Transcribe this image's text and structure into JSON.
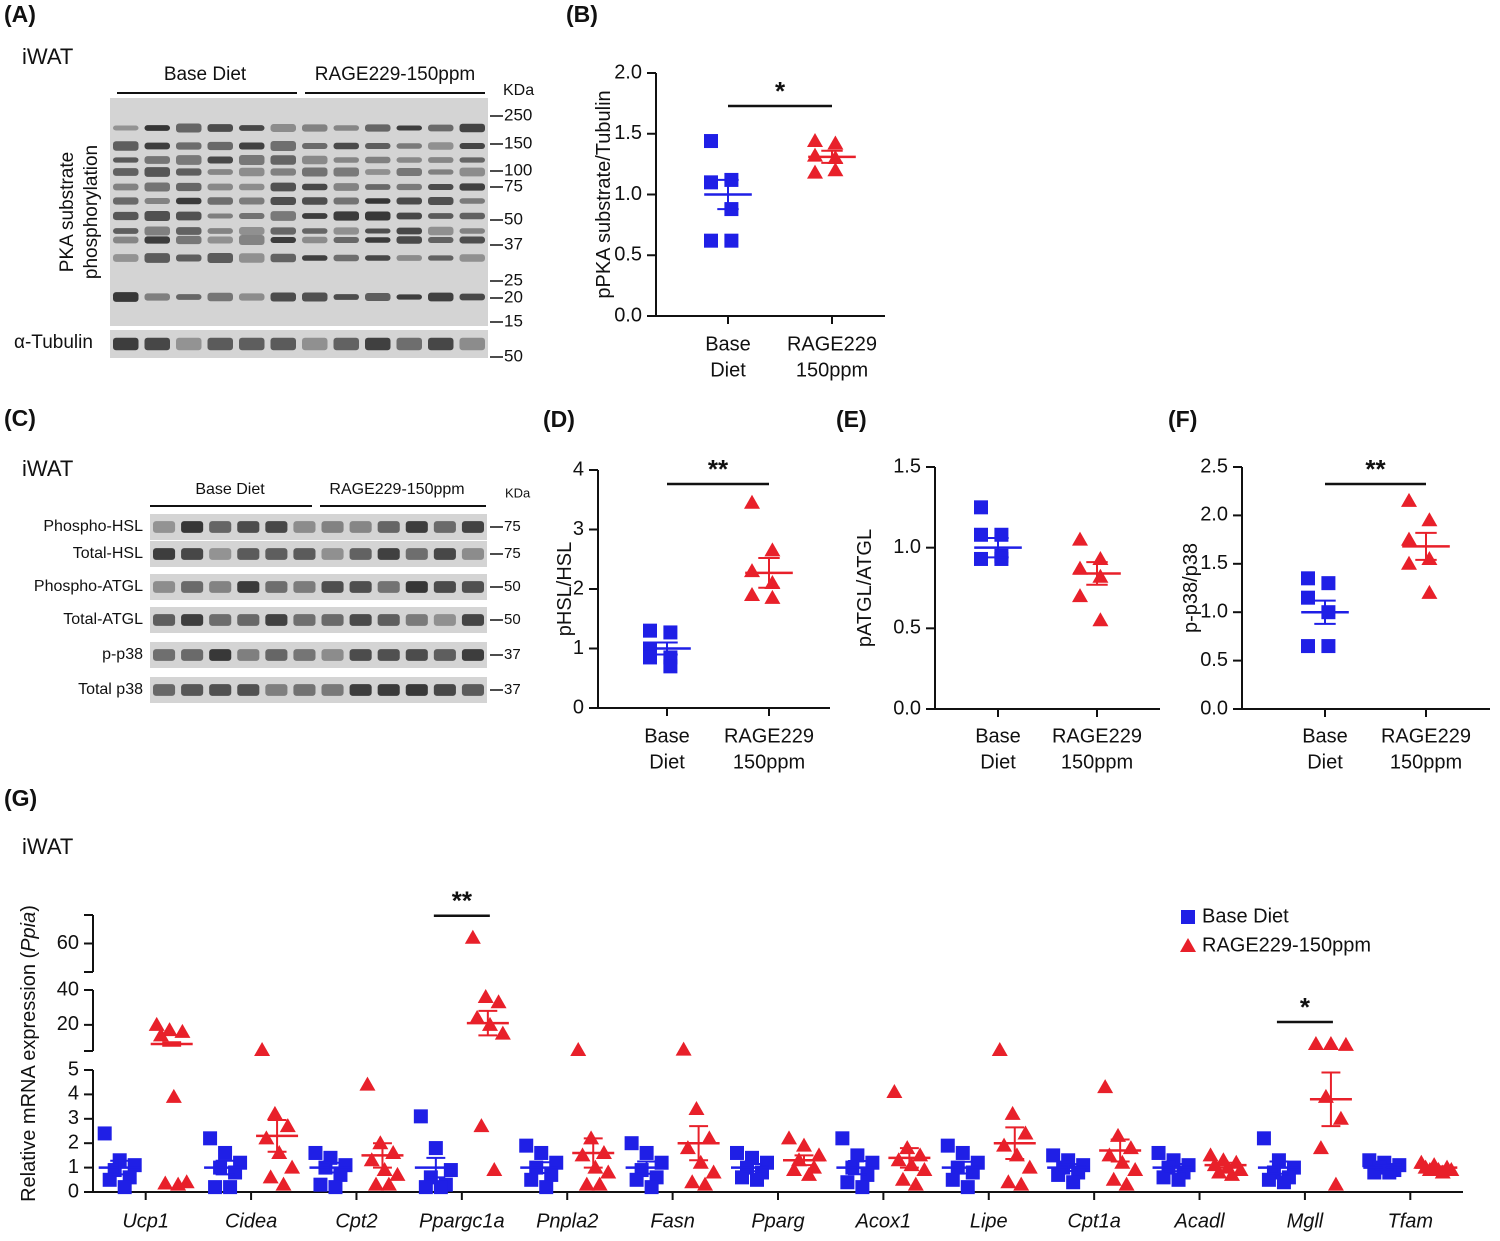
{
  "blots": [
    {
      "panel": "(A)",
      "tissue": "iWAT",
      "groups": [
        "Base Diet",
        "RAGE229-150ppm"
      ],
      "unit": "KDa",
      "rows": [
        {
          "label": [
            "PKA substrate",
            "phosphorylation"
          ],
          "markers": [
            250,
            150,
            100,
            75,
            50,
            37,
            25,
            20,
            15
          ]
        },
        {
          "label": [
            "α-Tubulin"
          ],
          "markers": [
            50
          ]
        }
      ]
    },
    {
      "panel": "(C)",
      "tissue": "iWAT",
      "groups": [
        "Base Diet",
        "RAGE229-150ppm"
      ],
      "unit": "KDa",
      "rows": [
        {
          "label": [
            "Phospho-HSL"
          ],
          "markers": [
            75
          ]
        },
        {
          "label": [
            "Total-HSL"
          ],
          "markers": [
            75
          ]
        },
        {
          "label": [
            "Phospho-ATGL"
          ],
          "markers": [
            50
          ]
        },
        {
          "label": [
            "Total-ATGL"
          ],
          "markers": [
            50
          ]
        },
        {
          "label": [
            "p-p38"
          ],
          "markers": [
            37
          ]
        },
        {
          "label": [
            "Total p38"
          ],
          "markers": [
            37
          ]
        }
      ]
    }
  ],
  "chart_data": [
    {
      "type": "strip",
      "panel": "(B)",
      "ylabel": [
        "pPKA substrate/Tubulin"
      ],
      "categories": [
        [
          "Base",
          "Diet"
        ],
        [
          "RAGE229",
          "150ppm"
        ]
      ],
      "groups": [
        {
          "color": "#1f1fe6",
          "marker": "square",
          "values": [
            1.44,
            1.12,
            1.1,
            0.88,
            0.62,
            0.62
          ],
          "mean": 1.0,
          "sem": 0.12
        },
        {
          "color": "#e8202a",
          "marker": "triangle",
          "values": [
            1.44,
            1.42,
            1.32,
            1.3,
            1.18,
            1.2
          ],
          "mean": 1.31,
          "sem": 0.05
        }
      ],
      "ylim": [
        0,
        2
      ],
      "yticks": [
        {
          "value": 0,
          "label": "0.0"
        },
        0.5,
        {
          "value": 1,
          "label": "1.0"
        },
        1.5,
        {
          "value": 2,
          "label": "2.0"
        }
      ],
      "significance": "*"
    },
    {
      "type": "strip",
      "panel": "(D)",
      "ylabel": [
        "pHSL/HSL"
      ],
      "categories": [
        [
          "Base",
          "Diet"
        ],
        [
          "RAGE229",
          "150ppm"
        ]
      ],
      "groups": [
        {
          "color": "#1f1fe6",
          "marker": "square",
          "values": [
            1.3,
            1.27,
            1.0,
            0.85,
            0.85,
            0.7
          ],
          "mean": 1.0,
          "sem": 0.1
        },
        {
          "color": "#e8202a",
          "marker": "triangle",
          "values": [
            3.45,
            2.65,
            2.3,
            2.1,
            1.9,
            1.85
          ],
          "mean": 2.27,
          "sem": 0.25
        }
      ],
      "ylim": [
        0,
        4
      ],
      "yticks": [
        0,
        1,
        2,
        3,
        4
      ],
      "significance": "**"
    },
    {
      "type": "strip",
      "panel": "(E)",
      "ylabel": [
        "pATGL/ATGL"
      ],
      "categories": [
        [
          "Base",
          "Diet"
        ],
        [
          "RAGE229",
          "150ppm"
        ]
      ],
      "groups": [
        {
          "color": "#1f1fe6",
          "marker": "square",
          "values": [
            1.25,
            1.08,
            1.08,
            0.95,
            0.93,
            0.93
          ],
          "mean": 1.0,
          "sem": 0.06
        },
        {
          "color": "#e8202a",
          "marker": "triangle",
          "values": [
            1.05,
            0.93,
            0.87,
            0.82,
            0.7,
            0.55
          ],
          "mean": 0.84,
          "sem": 0.07
        }
      ],
      "ylim": [
        0,
        1.5
      ],
      "yticks": [
        {
          "value": 0,
          "label": "0.0"
        },
        0.5,
        {
          "value": 1,
          "label": "1.0"
        },
        1.5
      ],
      "significance": null
    },
    {
      "type": "strip",
      "panel": "(F)",
      "ylabel": [
        "p-p38/p38"
      ],
      "categories": [
        [
          "Base",
          "Diet"
        ],
        [
          "RAGE229",
          "150ppm"
        ]
      ],
      "groups": [
        {
          "color": "#1f1fe6",
          "marker": "square",
          "values": [
            1.35,
            1.3,
            1.15,
            1.0,
            0.65,
            0.65
          ],
          "mean": 1.0,
          "sem": 0.12
        },
        {
          "color": "#e8202a",
          "marker": "triangle",
          "values": [
            2.15,
            1.95,
            1.75,
            1.55,
            1.5,
            1.2
          ],
          "mean": 1.68,
          "sem": 0.14
        }
      ],
      "ylim": [
        0,
        2.5
      ],
      "yticks": [
        {
          "value": 0,
          "label": "0.0"
        },
        0.5,
        {
          "value": 1,
          "label": "1.0"
        },
        1.5,
        {
          "value": 2,
          "label": "2.0"
        },
        2.5
      ],
      "significance": "**"
    },
    {
      "type": "strip",
      "panel": "(G)",
      "subtitle": "iWAT",
      "ylabel": [
        "Relative mRNA expression (",
        "Ppia",
        ")"
      ],
      "categories": [
        [
          "Ucp1"
        ],
        [
          "Cidea"
        ],
        [
          "Cpt2"
        ],
        [
          "Ppargc1a"
        ],
        [
          "Pnpla2"
        ],
        [
          "Fasn"
        ],
        [
          "Pparg"
        ],
        [
          "Acox1"
        ],
        [
          "Lipe"
        ],
        [
          "Cpt1a"
        ],
        [
          "Acadl"
        ],
        [
          "Mgll"
        ],
        [
          "Tfam"
        ]
      ],
      "series": [
        {
          "name": "Base Diet",
          "color": "#1f1fe6",
          "marker": "square",
          "values": [
            [
              2.4,
              1.3,
              1.1,
              0.9,
              0.6,
              0.5,
              0.2
            ],
            [
              2.2,
              1.6,
              1.2,
              1.0,
              0.8,
              0.2,
              0.2
            ],
            [
              1.6,
              1.4,
              1.1,
              1.0,
              0.7,
              0.3,
              0.2
            ],
            [
              3.1,
              1.8,
              0.9,
              0.6,
              0.3,
              0.2,
              0.2
            ],
            [
              1.9,
              1.6,
              1.2,
              1.0,
              0.7,
              0.5,
              0.2
            ],
            [
              2.0,
              1.6,
              1.2,
              0.9,
              0.6,
              0.5,
              0.2
            ],
            [
              1.6,
              1.4,
              1.2,
              1.0,
              0.8,
              0.6,
              0.5
            ],
            [
              2.2,
              1.5,
              1.2,
              1.0,
              0.7,
              0.4,
              0.2
            ],
            [
              1.9,
              1.6,
              1.2,
              1.0,
              0.8,
              0.5,
              0.2
            ],
            [
              1.5,
              1.3,
              1.1,
              1.0,
              0.8,
              0.7,
              0.4
            ],
            [
              1.6,
              1.3,
              1.1,
              1.0,
              0.8,
              0.6,
              0.5
            ],
            [
              2.2,
              1.3,
              1.0,
              0.8,
              0.6,
              0.5,
              0.4
            ],
            [
              1.3,
              1.2,
              1.1,
              1.0,
              0.9,
              0.8,
              0.8
            ]
          ],
          "mean": [
            1.0,
            1.0,
            1.0,
            1.0,
            1.0,
            1.0,
            1.0,
            1.0,
            1.0,
            1.0,
            1.0,
            1.0,
            1.0
          ],
          "sem": [
            0.28,
            0.28,
            0.2,
            0.4,
            0.22,
            0.25,
            0.15,
            0.27,
            0.24,
            0.14,
            0.15,
            0.25,
            0.07
          ]
        },
        {
          "name": "RAGE229-150ppm",
          "color": "#e8202a",
          "marker": "triangle",
          "values": [
            [
              20,
              17,
              16,
              14,
              3.9,
              0.4,
              0.35,
              0.3
            ],
            [
              5.6,
              3.2,
              2.7,
              2.2,
              1.6,
              1.0,
              0.6,
              0.3
            ],
            [
              4.4,
              2.0,
              1.6,
              1.3,
              0.9,
              0.7,
              0.3,
              0.3
            ],
            [
              62,
              36,
              33,
              24,
              20,
              15,
              2.7,
              0.9
            ],
            [
              5.6,
              2.2,
              1.6,
              1.5,
              1.0,
              0.8,
              0.3,
              0.3
            ],
            [
              5.8,
              3.4,
              2.2,
              1.8,
              1.2,
              0.8,
              0.4,
              0.3
            ],
            [
              2.2,
              1.9,
              1.5,
              1.3,
              1.0,
              0.9,
              0.7
            ],
            [
              4.1,
              1.8,
              1.5,
              1.3,
              1.1,
              0.9,
              0.5,
              0.3
            ],
            [
              5.6,
              3.2,
              2.4,
              1.9,
              1.5,
              1.0,
              0.4,
              0.3
            ],
            [
              4.3,
              2.3,
              1.8,
              1.5,
              1.2,
              0.9,
              0.5,
              0.3
            ],
            [
              1.5,
              1.3,
              1.2,
              1.1,
              1.0,
              0.9,
              0.8,
              0.7
            ],
            [
              9,
              9,
              8.5,
              3.9,
              3.0,
              1.8,
              0.3
            ],
            [
              1.2,
              1.1,
              1.0,
              1.0,
              0.9,
              0.9,
              0.9,
              0.8
            ]
          ],
          "mean": [
            9,
            2.3,
            1.5,
            21,
            1.6,
            2.0,
            1.3,
            1.4,
            2.0,
            1.7,
            1.1,
            3.8,
            1.0
          ],
          "sem": [
            1,
            0.65,
            0.5,
            7,
            0.6,
            0.7,
            0.2,
            0.4,
            0.65,
            0.45,
            0.1,
            1.1,
            0.05
          ]
        }
      ],
      "y_segments": [
        {
          "ylim": [
            0,
            5
          ],
          "yticks": [
            0,
            1,
            2,
            3,
            4,
            5
          ]
        },
        {
          "ylim": [
            5,
            40
          ],
          "yticks": [
            20,
            40
          ]
        },
        {
          "ylim": [
            50,
            70
          ],
          "yticks": [
            60
          ]
        }
      ],
      "legend": "upper right",
      "significance": [
        null,
        null,
        null,
        "**",
        null,
        null,
        null,
        null,
        null,
        null,
        null,
        "*",
        null
      ]
    }
  ]
}
